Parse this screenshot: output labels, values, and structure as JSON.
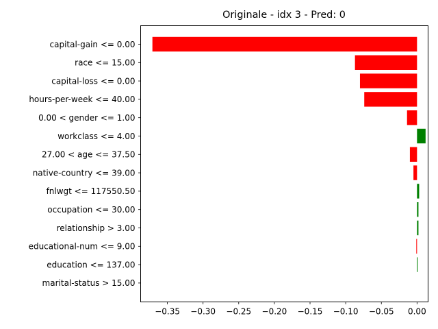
{
  "chart_data": {
    "type": "bar",
    "orientation": "horizontal",
    "title": "Originale - idx 3 - Pred: 0",
    "xlabel": "",
    "ylabel": "",
    "grid": false,
    "xlim": [
      -0.3875,
      0.0155
    ],
    "xticks": [
      -0.35,
      -0.3,
      -0.25,
      -0.2,
      -0.15,
      -0.1,
      -0.05,
      0.0
    ],
    "xtick_labels": [
      "−0.35",
      "−0.30",
      "−0.25",
      "−0.20",
      "−0.15",
      "−0.10",
      "−0.05",
      "0.00"
    ],
    "categories": [
      "capital-gain <= 0.00",
      "race <= 15.00",
      "capital-loss <= 0.00",
      "hours-per-week <= 40.00",
      "0.00 < gender <= 1.00",
      "workclass <= 4.00",
      "27.00 < age <= 37.50",
      "native-country <= 39.00",
      "fnlwgt <= 117550.50",
      "occupation <= 30.00",
      "relationship > 3.00",
      "educational-num <= 9.00",
      "education <= 137.00",
      "marital-status > 15.00"
    ],
    "values": [
      -0.371,
      -0.087,
      -0.08,
      -0.074,
      -0.014,
      0.012,
      -0.01,
      -0.005,
      0.003,
      0.002,
      0.002,
      -0.001,
      0.001,
      0.0
    ],
    "colors": {
      "negative": "#ff0000",
      "positive": "#008000"
    }
  }
}
